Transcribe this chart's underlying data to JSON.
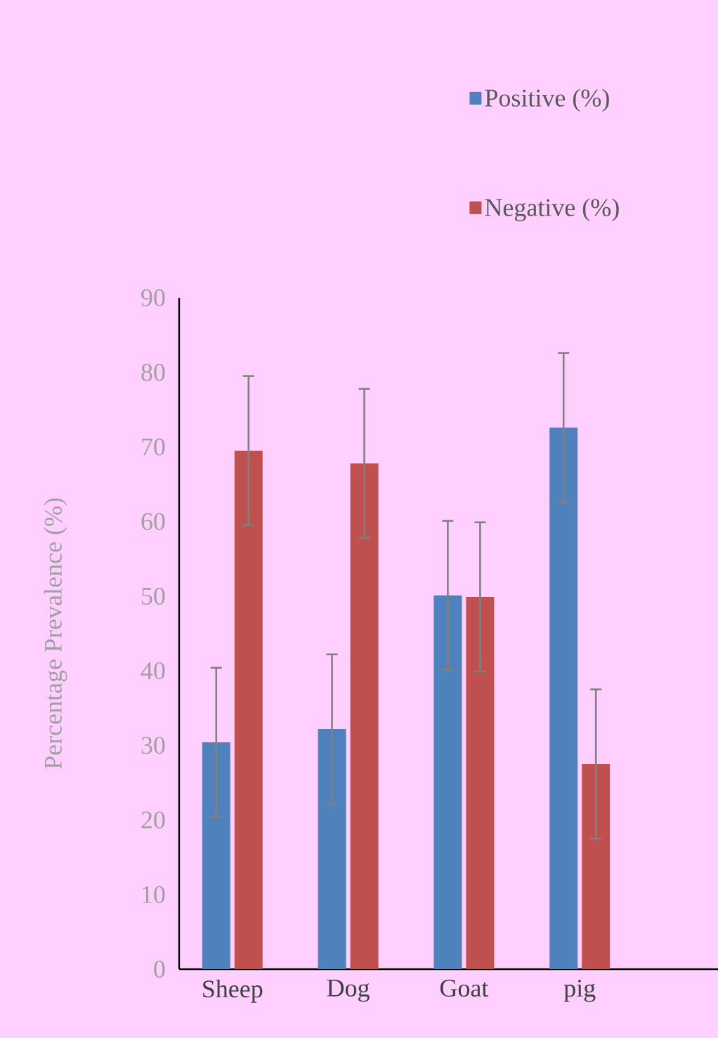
{
  "chart_data": {
    "type": "bar",
    "ylabel": "Percentage Prevalence (%)",
    "categories": [
      "Sheep",
      "Dog",
      "Goat",
      "pig"
    ],
    "series": [
      {
        "name": "Positive (%)",
        "color": "#4f81bd",
        "values": [
          30.4,
          32.2,
          50.1,
          72.6
        ],
        "errors": [
          10,
          10,
          10,
          10
        ]
      },
      {
        "name": "Negative  (%)",
        "color": "#c0504d",
        "values": [
          69.5,
          67.8,
          49.9,
          27.5
        ],
        "errors": [
          10,
          10,
          10,
          10
        ]
      }
    ],
    "ylim": [
      0,
      90
    ],
    "yticks": [
      0,
      10,
      20,
      30,
      40,
      50,
      60,
      70,
      80,
      90
    ],
    "grid": false,
    "legend": "top right"
  }
}
